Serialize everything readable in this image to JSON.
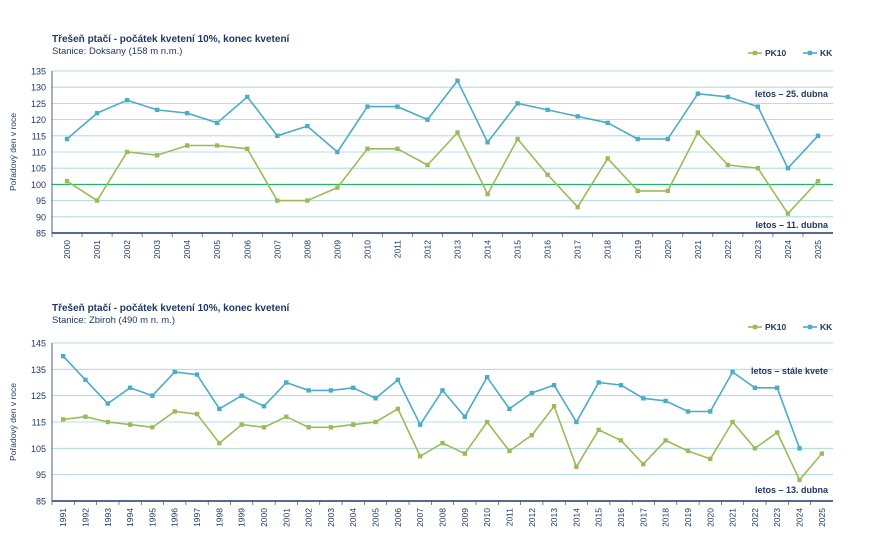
{
  "chart_data": [
    {
      "type": "line",
      "title": "Třešeň ptačí - počátek kvetení 10%, konec kvetení",
      "subtitle": "Stanice: Doksany  (158 m n.m.)",
      "ylabel": "Pořadový den v roce",
      "ylim": [
        85,
        135
      ],
      "yticks": [
        85,
        90,
        95,
        100,
        105,
        110,
        115,
        120,
        125,
        130,
        135
      ],
      "hline": 100,
      "x": [
        "2000",
        "2001",
        "2002",
        "2003",
        "2004",
        "2005",
        "2006",
        "2007",
        "2008",
        "2009",
        "2010",
        "2011",
        "2012",
        "2013",
        "2014",
        "2015",
        "2016",
        "2017",
        "2018",
        "2019",
        "2020",
        "2021",
        "2022",
        "2023",
        "2024",
        "2025"
      ],
      "series": [
        {
          "name": "PK10",
          "color": "#9bbb59",
          "values": [
            101,
            95,
            110,
            109,
            112,
            112,
            111,
            95,
            95,
            99,
            111,
            111,
            106,
            116,
            97,
            114,
            103,
            93,
            108,
            98,
            98,
            116,
            106,
            105,
            91,
            101
          ]
        },
        {
          "name": "KK",
          "color": "#4bacc6",
          "values": [
            114,
            122,
            126,
            123,
            122,
            119,
            127,
            115,
            118,
            110,
            124,
            124,
            120,
            132,
            113,
            125,
            123,
            121,
            119,
            114,
            114,
            128,
            127,
            124,
            105,
            115
          ]
        }
      ],
      "annotations": [
        {
          "text": "letos – 25. dubna",
          "series": "KK"
        },
        {
          "text": "letos – 11. dubna",
          "series": "PK10"
        }
      ],
      "legend": "top-right"
    },
    {
      "type": "line",
      "title": "Třešeň ptačí - počátek kvetení 10%, konec kvetení",
      "subtitle": "Stanice: Zbiroh  (490 m n. m.)",
      "ylabel": "Pořadový den v roce",
      "ylim": [
        85,
        145
      ],
      "yticks": [
        85,
        95,
        105,
        115,
        125,
        135,
        145
      ],
      "x": [
        "1991",
        "1992",
        "1993",
        "1994",
        "1995",
        "1996",
        "1997",
        "1998",
        "1999",
        "2000",
        "2001",
        "2002",
        "2003",
        "2004",
        "2005",
        "2006",
        "2007",
        "2008",
        "2009",
        "2010",
        "2011",
        "2012",
        "2013",
        "2014",
        "2015",
        "2016",
        "2017",
        "2018",
        "2019",
        "2020",
        "2021",
        "2022",
        "2023",
        "2024",
        "2025"
      ],
      "series": [
        {
          "name": "PK10",
          "color": "#9bbb59",
          "values": [
            116,
            117,
            115,
            114,
            113,
            119,
            118,
            107,
            114,
            113,
            117,
            113,
            113,
            114,
            115,
            120,
            102,
            107,
            103,
            115,
            104,
            110,
            121,
            98,
            112,
            108,
            99,
            108,
            104,
            101,
            115,
            105,
            111,
            93,
            103
          ]
        },
        {
          "name": "KK",
          "color": "#4bacc6",
          "values": [
            140,
            131,
            122,
            128,
            125,
            134,
            133,
            120,
            125,
            121,
            130,
            127,
            127,
            128,
            124,
            131,
            114,
            127,
            117,
            132,
            120,
            126,
            129,
            115,
            130,
            129,
            124,
            123,
            119,
            119,
            134,
            128,
            128,
            105,
            null
          ]
        }
      ],
      "annotations": [
        {
          "text": "letos – stále kvete",
          "series": "KK"
        },
        {
          "text": "letos – 13. dubna",
          "series": "PK10"
        }
      ],
      "legend": "top-right"
    }
  ]
}
